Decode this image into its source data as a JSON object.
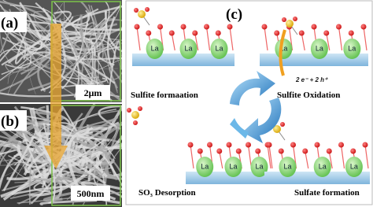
{
  "panels": {
    "a": {
      "label": "(a)",
      "scale_bar": "2μm"
    },
    "b": {
      "label": "(b)",
      "scale_bar": "500nm"
    },
    "c": {
      "label": "(c)",
      "atom_label": "La",
      "charge_label": "2 e⁻ + 2 h⁺",
      "steps": [
        "Sulfite formaation",
        "Sulfite Oxidation",
        "SO₃ Desorption",
        "Sulfate formation"
      ]
    }
  }
}
